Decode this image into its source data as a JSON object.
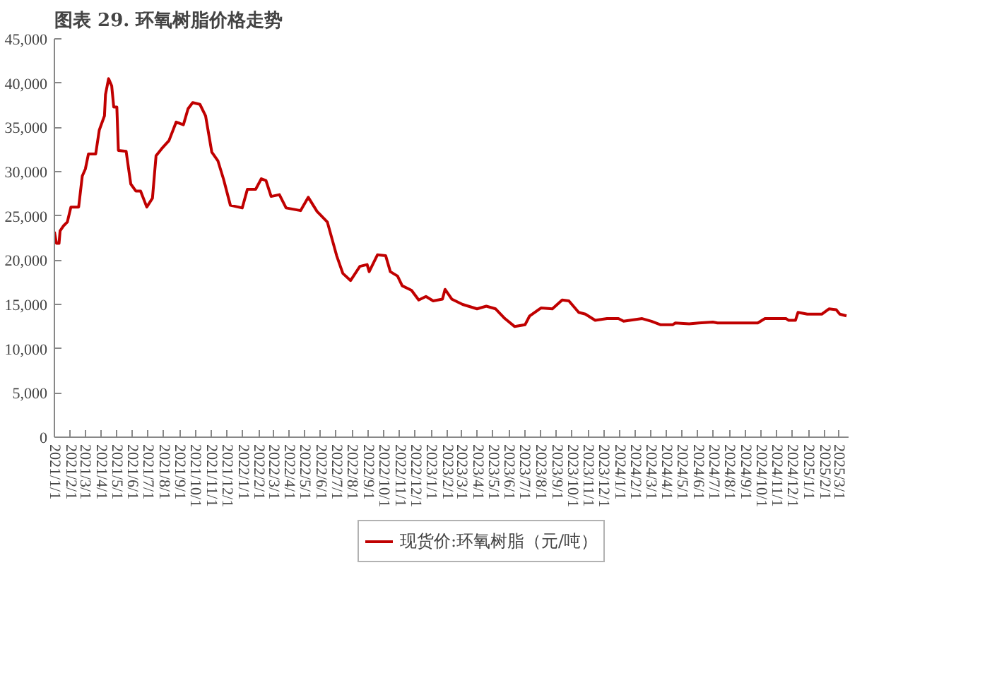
{
  "chart_data": {
    "type": "line",
    "title": "图表 29. 环氧树脂价格走势",
    "x": [
      "2021-01-01",
      "2021-01-05",
      "2021-01-10",
      "2021-01-12",
      "2021-01-19",
      "2021-01-26",
      "2021-02-02",
      "2021-02-17",
      "2021-02-24",
      "2021-03-02",
      "2021-03-08",
      "2021-03-22",
      "2021-03-29",
      "2021-04-08",
      "2021-04-10",
      "2021-04-16",
      "2021-04-22",
      "2021-04-26",
      "2021-05-02",
      "2021-05-05",
      "2021-05-20",
      "2021-05-29",
      "2021-06-08",
      "2021-06-17",
      "2021-06-29",
      "2021-07-10",
      "2021-07-17",
      "2021-07-28",
      "2021-08-11",
      "2021-08-25",
      "2021-09-08",
      "2021-09-17",
      "2021-09-26",
      "2021-10-10",
      "2021-10-21",
      "2021-11-02",
      "2021-11-14",
      "2021-11-25",
      "2021-12-08",
      "2021-12-31",
      "2022-01-10",
      "2022-01-26",
      "2022-02-06",
      "2022-02-15",
      "2022-02-25",
      "2022-03-13",
      "2022-03-26",
      "2022-04-23",
      "2022-05-08",
      "2022-05-25",
      "2022-06-14",
      "2022-07-02",
      "2022-07-14",
      "2022-07-29",
      "2022-08-16",
      "2022-08-30",
      "2022-09-03",
      "2022-09-19",
      "2022-10-05",
      "2022-10-14",
      "2022-10-28",
      "2022-11-06",
      "2022-11-24",
      "2022-12-08",
      "2022-12-22",
      "2023-01-05",
      "2023-01-23",
      "2023-01-28",
      "2023-02-10",
      "2023-03-03",
      "2023-03-31",
      "2023-04-18",
      "2023-05-06",
      "2023-05-24",
      "2023-06-12",
      "2023-07-02",
      "2023-07-11",
      "2023-08-02",
      "2023-08-24",
      "2023-09-12",
      "2023-09-25",
      "2023-10-14",
      "2023-10-27",
      "2023-11-15",
      "2023-12-08",
      "2023-12-30",
      "2024-01-09",
      "2024-02-14",
      "2024-03-03",
      "2024-03-21",
      "2024-04-13",
      "2024-04-18",
      "2024-05-15",
      "2024-06-03",
      "2024-06-30",
      "2024-07-09",
      "2024-09-25",
      "2024-10-09",
      "2024-11-19",
      "2024-11-24",
      "2024-12-07",
      "2024-12-12",
      "2024-12-30",
      "2025-01-27",
      "2025-02-10",
      "2025-02-24",
      "2025-03-03",
      "2025-03-16"
    ],
    "series": [
      {
        "name": "现货价:环氧树脂（元/吨）",
        "color": "#c00000",
        "values": [
          23200,
          21900,
          21900,
          23300,
          23900,
          24300,
          26000,
          26000,
          29500,
          30300,
          32000,
          32000,
          34700,
          36300,
          38700,
          40500,
          39700,
          37300,
          37300,
          32400,
          32300,
          28600,
          27800,
          27800,
          26000,
          27000,
          31800,
          32600,
          33500,
          35600,
          35300,
          37100,
          37800,
          37600,
          36300,
          32200,
          31200,
          29100,
          26200,
          25900,
          28000,
          28000,
          29200,
          29000,
          27200,
          27400,
          25900,
          25600,
          27100,
          25500,
          24300,
          20500,
          18500,
          17700,
          19300,
          19500,
          18700,
          20600,
          20500,
          18700,
          18200,
          17100,
          16600,
          15500,
          15900,
          15400,
          15600,
          16700,
          15600,
          15000,
          14500,
          14800,
          14500,
          13400,
          12500,
          12700,
          13700,
          14600,
          14500,
          15500,
          15400,
          14100,
          13900,
          13200,
          13400,
          13400,
          13100,
          13400,
          13100,
          12700,
          12700,
          12900,
          12800,
          12900,
          13000,
          12900,
          12900,
          13400,
          13400,
          13200,
          13200,
          14100,
          13900,
          13900,
          14500,
          14400,
          13900,
          13700
        ]
      }
    ],
    "xlim": [
      "2021-01-01",
      "2025-03-20"
    ],
    "xticks": [
      {
        "value": "2021-01-01",
        "label": "2021/1/1"
      },
      {
        "value": "2021-02-01",
        "label": "2021/2/1"
      },
      {
        "value": "2021-03-01",
        "label": "2021/3/1"
      },
      {
        "value": "2021-04-01",
        "label": "2021/4/1"
      },
      {
        "value": "2021-05-01",
        "label": "2021/5/1"
      },
      {
        "value": "2021-06-01",
        "label": "2021/6/1"
      },
      {
        "value": "2021-07-01",
        "label": "2021/7/1"
      },
      {
        "value": "2021-08-01",
        "label": "2021/8/1"
      },
      {
        "value": "2021-09-01",
        "label": "2021/9/1"
      },
      {
        "value": "2021-10-01",
        "label": "2021/10/1"
      },
      {
        "value": "2021-11-01",
        "label": "2021/11/1"
      },
      {
        "value": "2021-12-01",
        "label": "2021/12/1"
      },
      {
        "value": "2022-01-01",
        "label": "2022/1/1"
      },
      {
        "value": "2022-02-01",
        "label": "2022/2/1"
      },
      {
        "value": "2022-03-01",
        "label": "2022/3/1"
      },
      {
        "value": "2022-04-01",
        "label": "2022/4/1"
      },
      {
        "value": "2022-05-01",
        "label": "2022/5/1"
      },
      {
        "value": "2022-06-01",
        "label": "2022/6/1"
      },
      {
        "value": "2022-07-01",
        "label": "2022/7/1"
      },
      {
        "value": "2022-08-01",
        "label": "2022/8/1"
      },
      {
        "value": "2022-09-01",
        "label": "2022/9/1"
      },
      {
        "value": "2022-10-01",
        "label": "2022/10/1"
      },
      {
        "value": "2022-11-01",
        "label": "2022/11/1"
      },
      {
        "value": "2022-12-01",
        "label": "2022/12/1"
      },
      {
        "value": "2023-01-01",
        "label": "2023/1/1"
      },
      {
        "value": "2023-02-01",
        "label": "2023/2/1"
      },
      {
        "value": "2023-03-01",
        "label": "2023/3/1"
      },
      {
        "value": "2023-04-01",
        "label": "2023/4/1"
      },
      {
        "value": "2023-05-01",
        "label": "2023/5/1"
      },
      {
        "value": "2023-06-01",
        "label": "2023/6/1"
      },
      {
        "value": "2023-07-01",
        "label": "2023/7/1"
      },
      {
        "value": "2023-08-01",
        "label": "2023/8/1"
      },
      {
        "value": "2023-09-01",
        "label": "2023/9/1"
      },
      {
        "value": "2023-10-01",
        "label": "2023/10/1"
      },
      {
        "value": "2023-11-01",
        "label": "2023/11/1"
      },
      {
        "value": "2023-12-01",
        "label": "2023/12/1"
      },
      {
        "value": "2024-01-01",
        "label": "2024/1/1"
      },
      {
        "value": "2024-02-01",
        "label": "2024/2/1"
      },
      {
        "value": "2024-03-01",
        "label": "2024/3/1"
      },
      {
        "value": "2024-04-01",
        "label": "2024/4/1"
      },
      {
        "value": "2024-05-01",
        "label": "2024/5/1"
      },
      {
        "value": "2024-06-01",
        "label": "2024/6/1"
      },
      {
        "value": "2024-07-01",
        "label": "2024/7/1"
      },
      {
        "value": "2024-08-01",
        "label": "2024/8/1"
      },
      {
        "value": "2024-09-01",
        "label": "2024/9/1"
      },
      {
        "value": "2024-10-01",
        "label": "2024/10/1"
      },
      {
        "value": "2024-11-01",
        "label": "2024/11/1"
      },
      {
        "value": "2024-12-01",
        "label": "2024/12/1"
      },
      {
        "value": "2025-01-01",
        "label": "2025/1/1"
      },
      {
        "value": "2025-02-01",
        "label": "2025/2/1"
      },
      {
        "value": "2025-03-01",
        "label": "2025/3/1"
      }
    ],
    "ylim": [
      0,
      45000
    ],
    "yticks": [
      0,
      {
        "value": 5000,
        "label": "5,000"
      },
      {
        "value": 10000,
        "label": "10,000"
      },
      {
        "value": 15000,
        "label": "15,000"
      },
      {
        "value": 20000,
        "label": "20,000"
      },
      {
        "value": 25000,
        "label": "25,000"
      },
      {
        "value": 30000,
        "label": "30,000"
      },
      {
        "value": 35000,
        "label": "35,000"
      },
      {
        "value": 40000,
        "label": "40,000"
      },
      {
        "value": 45000,
        "label": "45,000"
      }
    ],
    "grid": false,
    "legend": "bottom",
    "marker": "none",
    "line_style": "solid"
  }
}
